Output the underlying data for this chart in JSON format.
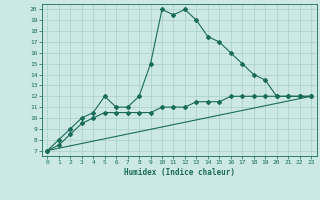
{
  "xlabel": "Humidex (Indice chaleur)",
  "background_color": "#cce8e4",
  "grid_color": "#aacfcb",
  "line_color": "#1a6b5a",
  "xlim": [
    -0.5,
    23.5
  ],
  "ylim": [
    6.5,
    20.5
  ],
  "xticks": [
    0,
    1,
    2,
    3,
    4,
    5,
    6,
    7,
    8,
    9,
    10,
    11,
    12,
    13,
    14,
    15,
    16,
    17,
    18,
    19,
    20,
    21,
    22,
    23
  ],
  "yticks": [
    7,
    8,
    9,
    10,
    11,
    12,
    13,
    14,
    15,
    16,
    17,
    18,
    19,
    20
  ],
  "series1_x": [
    0,
    1,
    2,
    3,
    4,
    5,
    6,
    7,
    8,
    9,
    10,
    11,
    12,
    13,
    14,
    15,
    16,
    17,
    18,
    19,
    20,
    21,
    22,
    23
  ],
  "series1_y": [
    7.0,
    8.0,
    9.0,
    10.0,
    10.5,
    12.0,
    11.0,
    11.0,
    12.0,
    15.0,
    20.0,
    19.5,
    20.0,
    19.0,
    17.5,
    17.0,
    16.0,
    15.0,
    14.0,
    13.5,
    12.0,
    12.0,
    12.0,
    12.0
  ],
  "series2_x": [
    0,
    1,
    2,
    3,
    4,
    5,
    6,
    7,
    8,
    9,
    10,
    11,
    12,
    13,
    14,
    15,
    16,
    17,
    18,
    19,
    20,
    21,
    22,
    23
  ],
  "series2_y": [
    7.0,
    7.5,
    8.5,
    9.5,
    10.0,
    10.5,
    10.5,
    10.5,
    10.5,
    10.5,
    11.0,
    11.0,
    11.0,
    11.5,
    11.5,
    11.5,
    12.0,
    12.0,
    12.0,
    12.0,
    12.0,
    12.0,
    12.0,
    12.0
  ],
  "series3_x": [
    0,
    23
  ],
  "series3_y": [
    7.0,
    12.0
  ]
}
